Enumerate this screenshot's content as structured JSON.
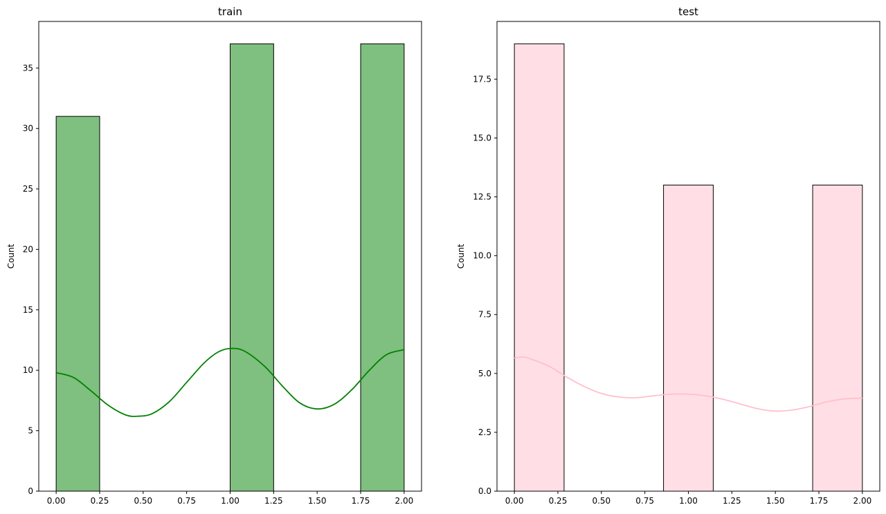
{
  "chart_data": [
    {
      "type": "bar",
      "title": "train",
      "xlabel": "",
      "ylabel": "Count",
      "color": "#008000",
      "bar_fill_opacity": 0.5,
      "bar_edge_color": "#000000",
      "kde": true,
      "xlim": [
        -0.1,
        2.1
      ],
      "ylim": [
        0,
        38.85
      ],
      "xticks": [
        "0.00",
        "0.25",
        "0.50",
        "0.75",
        "1.00",
        "1.25",
        "1.50",
        "1.75",
        "2.00"
      ],
      "yticks": [
        "0",
        "5",
        "10",
        "15",
        "20",
        "25",
        "30",
        "35"
      ],
      "bins": [
        {
          "x0": 0.0,
          "x1": 0.25,
          "count": 31
        },
        {
          "x0": 1.0,
          "x1": 1.25,
          "count": 37
        },
        {
          "x0": 1.75,
          "x1": 2.0,
          "count": 37
        }
      ],
      "kde_curve": [
        {
          "x": 0.0,
          "y": 9.8
        },
        {
          "x": 0.1,
          "y": 9.4
        },
        {
          "x": 0.2,
          "y": 8.3
        },
        {
          "x": 0.3,
          "y": 7.1
        },
        {
          "x": 0.4,
          "y": 6.3
        },
        {
          "x": 0.47,
          "y": 6.2
        },
        {
          "x": 0.55,
          "y": 6.4
        },
        {
          "x": 0.65,
          "y": 7.4
        },
        {
          "x": 0.75,
          "y": 9.0
        },
        {
          "x": 0.85,
          "y": 10.6
        },
        {
          "x": 0.93,
          "y": 11.5
        },
        {
          "x": 1.0,
          "y": 11.8
        },
        {
          "x": 1.08,
          "y": 11.6
        },
        {
          "x": 1.2,
          "y": 10.3
        },
        {
          "x": 1.3,
          "y": 8.7
        },
        {
          "x": 1.4,
          "y": 7.3
        },
        {
          "x": 1.5,
          "y": 6.8
        },
        {
          "x": 1.6,
          "y": 7.2
        },
        {
          "x": 1.7,
          "y": 8.4
        },
        {
          "x": 1.8,
          "y": 10.0
        },
        {
          "x": 1.9,
          "y": 11.3
        },
        {
          "x": 2.0,
          "y": 11.7
        }
      ]
    },
    {
      "type": "bar",
      "title": "test",
      "xlabel": "",
      "ylabel": "Count",
      "color": "#ffc0cb",
      "bar_fill_opacity": 0.5,
      "bar_edge_color": "#000000",
      "kde": true,
      "xlim": [
        -0.1,
        2.1
      ],
      "ylim": [
        0,
        19.95
      ],
      "xticks": [
        "0.00",
        "0.25",
        "0.50",
        "0.75",
        "1.00",
        "1.25",
        "1.50",
        "1.75",
        "2.00"
      ],
      "yticks": [
        "0.0",
        "2.5",
        "5.0",
        "7.5",
        "10.0",
        "12.5",
        "15.0",
        "17.5"
      ],
      "bins": [
        {
          "x0": 0.0,
          "x1": 0.2857,
          "count": 19
        },
        {
          "x0": 0.8571,
          "x1": 1.1429,
          "count": 13
        },
        {
          "x0": 1.7143,
          "x1": 2.0,
          "count": 13
        }
      ],
      "kde_curve": [
        {
          "x": 0.0,
          "y": 5.65
        },
        {
          "x": 0.05,
          "y": 5.7
        },
        {
          "x": 0.1,
          "y": 5.6
        },
        {
          "x": 0.2,
          "y": 5.3
        },
        {
          "x": 0.3,
          "y": 4.85
        },
        {
          "x": 0.4,
          "y": 4.45
        },
        {
          "x": 0.5,
          "y": 4.15
        },
        {
          "x": 0.6,
          "y": 4.0
        },
        {
          "x": 0.7,
          "y": 3.97
        },
        {
          "x": 0.8,
          "y": 4.05
        },
        {
          "x": 0.9,
          "y": 4.12
        },
        {
          "x": 1.0,
          "y": 4.12
        },
        {
          "x": 1.1,
          "y": 4.05
        },
        {
          "x": 1.2,
          "y": 3.9
        },
        {
          "x": 1.3,
          "y": 3.7
        },
        {
          "x": 1.4,
          "y": 3.5
        },
        {
          "x": 1.5,
          "y": 3.4
        },
        {
          "x": 1.6,
          "y": 3.45
        },
        {
          "x": 1.7,
          "y": 3.6
        },
        {
          "x": 1.8,
          "y": 3.8
        },
        {
          "x": 1.9,
          "y": 3.92
        },
        {
          "x": 2.0,
          "y": 3.95
        }
      ]
    }
  ]
}
